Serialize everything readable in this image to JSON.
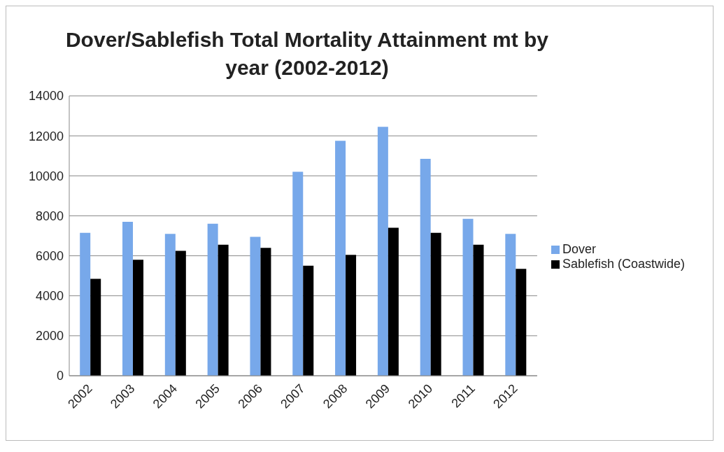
{
  "chart_data": {
    "type": "bar",
    "title": "Dover/Sablefish Total Mortality Attainment mt by year (2002-2012)",
    "categories": [
      "2002",
      "2003",
      "2004",
      "2005",
      "2006",
      "2007",
      "2008",
      "2009",
      "2010",
      "2011",
      "2012"
    ],
    "series": [
      {
        "name": "Dover",
        "color": "#77a8ea",
        "values": [
          7150,
          7700,
          7100,
          7600,
          6950,
          10200,
          11750,
          12450,
          10850,
          7850,
          7100
        ]
      },
      {
        "name": "Sablefish (Coastwide)",
        "color": "#000000",
        "values": [
          4850,
          5800,
          6250,
          6550,
          6400,
          5500,
          6050,
          7400,
          7150,
          6550,
          5350
        ]
      }
    ],
    "ylim": [
      0,
      14000
    ],
    "yticks": [
      0,
      2000,
      4000,
      6000,
      8000,
      10000,
      12000,
      14000
    ],
    "grid": "y",
    "legend": "right"
  }
}
